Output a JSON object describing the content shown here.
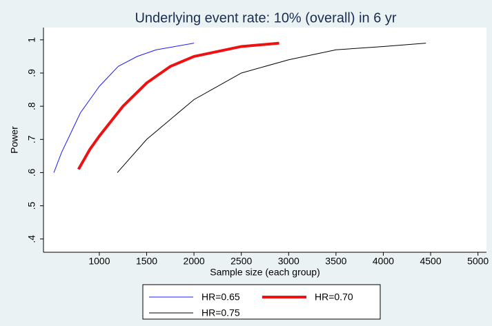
{
  "chart_data": {
    "type": "line",
    "title": "Underlying event rate: 10% (overall) in 6 yr",
    "x_label": "Sample size (each group)",
    "y_label": "Power",
    "xlim": [
      410,
      5090
    ],
    "ylim": [
      0.36,
      1.037
    ],
    "xticks": [
      1000,
      1500,
      2000,
      2500,
      3000,
      3500,
      4000,
      4500,
      5000
    ],
    "yticks": [
      {
        "value": 0.4,
        "label": ".4"
      },
      {
        "value": 0.5,
        "label": ".5"
      },
      {
        "value": 0.6,
        "label": ".6"
      },
      {
        "value": 0.7,
        "label": ".7"
      },
      {
        "value": 0.8,
        "label": ".8"
      },
      {
        "value": 0.9,
        "label": ".9"
      },
      1
    ],
    "series": [
      {
        "name": "HR=0.65",
        "color": "#1a1aff",
        "width": 1,
        "x": [
          520,
          600,
          700,
          800,
          900,
          1000,
          1200,
          1400,
          1600,
          1800,
          2000
        ],
        "values": [
          0.6,
          0.66,
          0.72,
          0.78,
          0.82,
          0.86,
          0.92,
          0.95,
          0.97,
          0.98,
          0.99
        ]
      },
      {
        "name": "HR=0.70",
        "color": "#ee1111",
        "width": 4,
        "x": [
          780,
          900,
          1000,
          1250,
          1500,
          1750,
          2000,
          2500,
          2900
        ],
        "values": [
          0.61,
          0.67,
          0.71,
          0.8,
          0.87,
          0.92,
          0.95,
          0.98,
          0.99
        ]
      },
      {
        "name": "HR=0.75",
        "color": "#000000",
        "width": 1,
        "x": [
          1190,
          1500,
          2000,
          2500,
          3000,
          3500,
          4000,
          4450
        ],
        "values": [
          0.6,
          0.7,
          0.82,
          0.9,
          0.94,
          0.97,
          0.98,
          0.99
        ]
      }
    ]
  }
}
